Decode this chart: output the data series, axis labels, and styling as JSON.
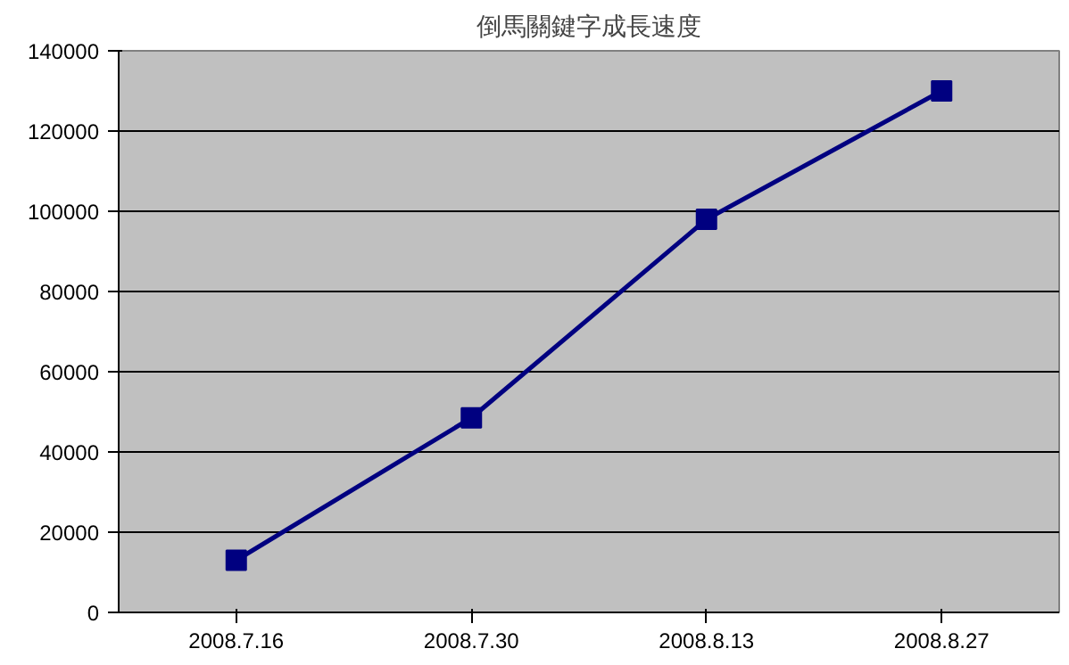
{
  "chart_data": {
    "type": "line",
    "title": "倒馬關鍵字成長速度",
    "categories": [
      "2008.7.16",
      "2008.7.30",
      "2008.8.13",
      "2008.8.27"
    ],
    "series": [
      {
        "color": "#000080",
        "values": [
          13000,
          48500,
          98000,
          130000
        ]
      }
    ],
    "ylim": [
      0,
      140000
    ],
    "yticks": [
      0,
      20000,
      40000,
      60000,
      80000,
      100000,
      120000,
      140000
    ],
    "grid": "y",
    "marker": "square",
    "line_style": "solid"
  }
}
